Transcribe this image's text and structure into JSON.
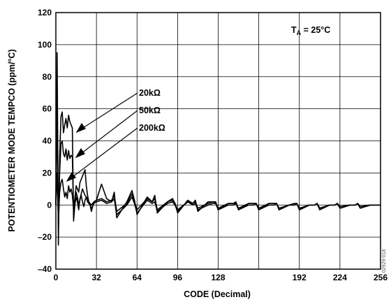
{
  "chart_data": {
    "type": "line",
    "title": "",
    "xlabel": "CODE (Decimal)",
    "ylabel": "POTENTIOMETER MODE TEMPCO (ppm/°C)",
    "xlim": [
      0,
      256
    ],
    "ylim": [
      -40,
      120
    ],
    "x_ticks": [
      0,
      32,
      64,
      96,
      128,
      192,
      224,
      256
    ],
    "x_tick_labels": [
      "0",
      "32",
      "64",
      "96",
      "128",
      "192",
      "224",
      "256"
    ],
    "x_grid_divisions": [
      0,
      32,
      64,
      96,
      128,
      160,
      192,
      224,
      256
    ],
    "y_ticks": [
      -40,
      -20,
      0,
      20,
      40,
      60,
      80,
      100,
      120
    ],
    "y_tick_labels": [
      "–40",
      "–20",
      "0",
      "20",
      "40",
      "60",
      "80",
      "100",
      "120"
    ],
    "grid": true,
    "annotation_ta": {
      "main": "T",
      "sub": "A",
      "rest": " = 25°C"
    },
    "figure_code": "02929-018",
    "series": [
      {
        "name": "20kΩ",
        "x": [
          0,
          1,
          2,
          3,
          4,
          5,
          6,
          7,
          8,
          9,
          10,
          11,
          12,
          13,
          14,
          15,
          16,
          17,
          18,
          19,
          20,
          21,
          22,
          23,
          24,
          25,
          26,
          27,
          28,
          30,
          32,
          36,
          40,
          44,
          46,
          48,
          56,
          60,
          62,
          64,
          72,
          76,
          78,
          80,
          88,
          92,
          94,
          96,
          104,
          108,
          110,
          112,
          120,
          124,
          126,
          128,
          136,
          140,
          142,
          144,
          152,
          156,
          158,
          160,
          168,
          172,
          174,
          176,
          184,
          188,
          190,
          192,
          200,
          204,
          206,
          208,
          216,
          220,
          222,
          224,
          232,
          236,
          238,
          240,
          248,
          252,
          254,
          256
        ],
        "y": [
          0,
          95,
          -25,
          30,
          55,
          58,
          45,
          50,
          54,
          48,
          56,
          52,
          50,
          48,
          -10,
          0,
          5,
          2,
          -3,
          4,
          6,
          2,
          -1,
          3,
          5,
          2,
          1,
          0,
          -2,
          1,
          2,
          3,
          1,
          2,
          4,
          -6,
          0,
          5,
          1,
          -5,
          3,
          1,
          2,
          -4,
          1,
          2,
          0,
          -4,
          2,
          0,
          1,
          -3,
          0,
          1,
          1,
          -3,
          0,
          0,
          1,
          -3,
          0,
          0,
          1,
          -3,
          0,
          0,
          1,
          -3,
          0,
          0,
          1,
          -3,
          0,
          0,
          1,
          -3,
          0,
          0,
          1,
          -2,
          0,
          0,
          1,
          -2,
          0,
          0,
          0,
          0
        ]
      },
      {
        "name": "50kΩ",
        "x": [
          0,
          1,
          2,
          3,
          4,
          5,
          6,
          7,
          8,
          9,
          10,
          11,
          12,
          13,
          14,
          15,
          16,
          17,
          18,
          19,
          20,
          21,
          22,
          23,
          24,
          25,
          26,
          27,
          28,
          30,
          32,
          36,
          40,
          44,
          46,
          48,
          56,
          60,
          62,
          64,
          72,
          76,
          78,
          80,
          88,
          92,
          94,
          96,
          104,
          108,
          110,
          112,
          120,
          124,
          126,
          128,
          136,
          140,
          142,
          144,
          152,
          156,
          158,
          160,
          168,
          172,
          174,
          176,
          184,
          188,
          190,
          192,
          200,
          204,
          206,
          208,
          216,
          220,
          222,
          224,
          232,
          236,
          238,
          240,
          248,
          252,
          254,
          256
        ],
        "y": [
          0,
          60,
          -15,
          20,
          38,
          40,
          32,
          30,
          35,
          28,
          34,
          29,
          31,
          30,
          -5,
          2,
          8,
          5,
          0,
          3,
          7,
          10,
          8,
          6,
          5,
          4,
          2,
          1,
          0,
          2,
          3,
          4,
          2,
          3,
          6,
          -4,
          1,
          7,
          2,
          -3,
          4,
          2,
          4,
          -3,
          2,
          3,
          1,
          -3,
          2,
          1,
          2,
          -2,
          1,
          2,
          1,
          -2,
          1,
          1,
          1,
          -2,
          1,
          1,
          1,
          -2,
          1,
          1,
          1,
          -2,
          0,
          0,
          1,
          -2,
          0,
          0,
          1,
          -2,
          0,
          0,
          1,
          -1,
          0,
          0,
          1,
          -1,
          0,
          0,
          0,
          0
        ]
      },
      {
        "name": "200kΩ",
        "x": [
          0,
          1,
          2,
          3,
          4,
          5,
          6,
          7,
          8,
          9,
          10,
          11,
          12,
          13,
          14,
          15,
          16,
          17,
          18,
          19,
          20,
          21,
          22,
          23,
          24,
          25,
          26,
          27,
          28,
          30,
          32,
          36,
          40,
          44,
          46,
          48,
          56,
          60,
          62,
          64,
          72,
          76,
          78,
          80,
          88,
          92,
          94,
          96,
          104,
          108,
          110,
          112,
          120,
          124,
          126,
          128,
          136,
          140,
          142,
          144,
          152,
          156,
          158,
          160,
          168,
          172,
          174,
          176,
          184,
          188,
          190,
          192,
          200,
          204,
          206,
          208,
          216,
          220,
          222,
          224,
          232,
          236,
          238,
          240,
          248,
          252,
          254,
          256
        ],
        "y": [
          0,
          20,
          -10,
          8,
          14,
          16,
          10,
          5,
          8,
          4,
          12,
          8,
          10,
          6,
          -2,
          4,
          12,
          10,
          8,
          14,
          16,
          18,
          20,
          22,
          12,
          6,
          2,
          0,
          -4,
          2,
          3,
          13,
          4,
          2,
          8,
          -8,
          2,
          9,
          3,
          -6,
          5,
          2,
          6,
          -5,
          2,
          4,
          1,
          -5,
          3,
          1,
          3,
          -4,
          2,
          2,
          2,
          -3,
          1,
          1,
          2,
          -3,
          1,
          1,
          1,
          -3,
          1,
          1,
          1,
          -3,
          0,
          1,
          1,
          -3,
          0,
          0,
          1,
          -2,
          0,
          0,
          1,
          -2,
          0,
          0,
          1,
          -1,
          0,
          0,
          0,
          0
        ]
      }
    ]
  }
}
